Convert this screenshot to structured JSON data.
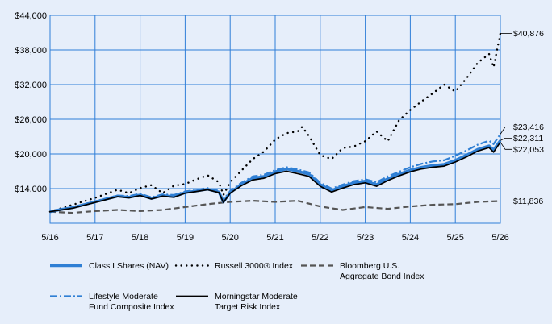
{
  "colors": {
    "background": "#e6eefa",
    "grid": "#2f7ed8",
    "class_i": "#2f7fd4",
    "russell": "#000000",
    "bloomberg": "#555555",
    "lifestyle": "#2f7fd4",
    "morningstar": "#000000"
  },
  "chart_data": {
    "type": "line",
    "title": "",
    "xlabel": "",
    "ylabel": "",
    "x_ticks": [
      "5/16",
      "5/17",
      "5/18",
      "5/19",
      "5/20",
      "5/21",
      "5/22",
      "5/23",
      "5/24",
      "5/25",
      "5/26"
    ],
    "y_ticks": [
      "$14,000",
      "$20,000",
      "$26,000",
      "$32,000",
      "$38,000",
      "$44,000"
    ],
    "ylim": [
      8000,
      44000
    ],
    "grid": true,
    "legend_position": "bottom",
    "series": [
      {
        "name": "Class I Shares (NAV)",
        "style": "solid-thick",
        "end_label": "$22,311",
        "points": [
          [
            0,
            10000
          ],
          [
            0.25,
            10400
          ],
          [
            0.5,
            10700
          ],
          [
            1.0,
            11700
          ],
          [
            1.5,
            12700
          ],
          [
            1.75,
            12500
          ],
          [
            2.0,
            12900
          ],
          [
            2.25,
            12300
          ],
          [
            2.5,
            12800
          ],
          [
            2.75,
            12600
          ],
          [
            3.0,
            13300
          ],
          [
            3.25,
            13600
          ],
          [
            3.5,
            13900
          ],
          [
            3.75,
            13400
          ],
          [
            3.85,
            11700
          ],
          [
            4.0,
            13300
          ],
          [
            4.25,
            14700
          ],
          [
            4.5,
            15800
          ],
          [
            4.75,
            16100
          ],
          [
            5.0,
            16900
          ],
          [
            5.25,
            17400
          ],
          [
            5.5,
            17000
          ],
          [
            5.75,
            16500
          ],
          [
            6.0,
            14700
          ],
          [
            6.25,
            13700
          ],
          [
            6.5,
            14400
          ],
          [
            6.75,
            15000
          ],
          [
            7.0,
            15300
          ],
          [
            7.25,
            14700
          ],
          [
            7.5,
            15700
          ],
          [
            7.75,
            16500
          ],
          [
            8.0,
            17200
          ],
          [
            8.25,
            17700
          ],
          [
            8.5,
            18000
          ],
          [
            8.75,
            18200
          ],
          [
            9.0,
            18900
          ],
          [
            9.25,
            19800
          ],
          [
            9.5,
            20800
          ],
          [
            9.75,
            21400
          ],
          [
            9.85,
            20700
          ],
          [
            10.0,
            22311
          ]
        ]
      },
      {
        "name": "Russell 3000® Index",
        "style": "dotted",
        "end_label": "$40,876",
        "points": [
          [
            0,
            10000
          ],
          [
            0.5,
            11200
          ],
          [
            1.0,
            12400
          ],
          [
            1.5,
            13800
          ],
          [
            1.75,
            13200
          ],
          [
            2.0,
            14100
          ],
          [
            2.25,
            14600
          ],
          [
            2.5,
            13200
          ],
          [
            2.75,
            14500
          ],
          [
            3.0,
            14800
          ],
          [
            3.25,
            15600
          ],
          [
            3.5,
            16300
          ],
          [
            3.75,
            15100
          ],
          [
            3.85,
            12900
          ],
          [
            4.0,
            15100
          ],
          [
            4.25,
            17100
          ],
          [
            4.5,
            19100
          ],
          [
            4.75,
            20400
          ],
          [
            5.0,
            22500
          ],
          [
            5.25,
            23600
          ],
          [
            5.5,
            23900
          ],
          [
            5.6,
            24700
          ],
          [
            5.75,
            23100
          ],
          [
            6.0,
            19800
          ],
          [
            6.25,
            19100
          ],
          [
            6.5,
            21000
          ],
          [
            6.75,
            21300
          ],
          [
            7.0,
            22200
          ],
          [
            7.25,
            23900
          ],
          [
            7.5,
            22200
          ],
          [
            7.75,
            25800
          ],
          [
            8.0,
            27600
          ],
          [
            8.25,
            29100
          ],
          [
            8.5,
            30500
          ],
          [
            8.75,
            32000
          ],
          [
            9.0,
            30800
          ],
          [
            9.25,
            33100
          ],
          [
            9.5,
            35800
          ],
          [
            9.75,
            37300
          ],
          [
            9.85,
            35000
          ],
          [
            10.0,
            40876
          ]
        ]
      },
      {
        "name": "Bloomberg U.S. Aggregate Bond Index",
        "label_lines": [
          "Bloomberg U.S.",
          "Aggregate Bond Index"
        ],
        "style": "dashed",
        "end_label": "$11,836",
        "points": [
          [
            0,
            10000
          ],
          [
            0.5,
            9800
          ],
          [
            1.0,
            10100
          ],
          [
            1.5,
            10300
          ],
          [
            2.0,
            10100
          ],
          [
            2.5,
            10300
          ],
          [
            3.0,
            10800
          ],
          [
            3.5,
            11300
          ],
          [
            4.0,
            11700
          ],
          [
            4.5,
            11900
          ],
          [
            5.0,
            11700
          ],
          [
            5.5,
            11900
          ],
          [
            6.0,
            10900
          ],
          [
            6.5,
            10300
          ],
          [
            7.0,
            10800
          ],
          [
            7.5,
            10500
          ],
          [
            8.0,
            10900
          ],
          [
            8.5,
            11200
          ],
          [
            9.0,
            11300
          ],
          [
            9.5,
            11700
          ],
          [
            10.0,
            11836
          ]
        ]
      },
      {
        "name": "Lifestyle Moderate Fund Composite Index",
        "label_lines": [
          "Lifestyle Moderate",
          "Fund Composite Index"
        ],
        "style": "dashdot",
        "end_label": "$23,416",
        "points": [
          [
            0,
            10000
          ],
          [
            0.25,
            10400
          ],
          [
            0.5,
            10800
          ],
          [
            1.0,
            11800
          ],
          [
            1.5,
            12800
          ],
          [
            1.75,
            12700
          ],
          [
            2.0,
            13100
          ],
          [
            2.25,
            12500
          ],
          [
            2.5,
            13000
          ],
          [
            2.75,
            12900
          ],
          [
            3.0,
            13500
          ],
          [
            3.25,
            13800
          ],
          [
            3.5,
            14100
          ],
          [
            3.75,
            13600
          ],
          [
            3.85,
            12000
          ],
          [
            4.0,
            13600
          ],
          [
            4.25,
            15000
          ],
          [
            4.5,
            16100
          ],
          [
            4.75,
            16400
          ],
          [
            5.0,
            17200
          ],
          [
            5.25,
            17700
          ],
          [
            5.5,
            17300
          ],
          [
            5.75,
            16800
          ],
          [
            6.0,
            15000
          ],
          [
            6.25,
            14000
          ],
          [
            6.5,
            14700
          ],
          [
            6.75,
            15300
          ],
          [
            7.0,
            15600
          ],
          [
            7.25,
            15100
          ],
          [
            7.5,
            16100
          ],
          [
            7.75,
            16900
          ],
          [
            8.0,
            17700
          ],
          [
            8.25,
            18300
          ],
          [
            8.5,
            18700
          ],
          [
            8.75,
            18900
          ],
          [
            9.0,
            19700
          ],
          [
            9.25,
            20600
          ],
          [
            9.5,
            21600
          ],
          [
            9.75,
            22300
          ],
          [
            9.85,
            21700
          ],
          [
            10.0,
            23416
          ]
        ]
      },
      {
        "name": "Morningstar Moderate Target Risk Index",
        "label_lines": [
          "Morningstar Moderate",
          "Target Risk Index"
        ],
        "style": "solid",
        "end_label": "$22,053",
        "points": [
          [
            0,
            10000
          ],
          [
            0.25,
            10300
          ],
          [
            0.5,
            10600
          ],
          [
            1.0,
            11600
          ],
          [
            1.5,
            12600
          ],
          [
            1.75,
            12400
          ],
          [
            2.0,
            12800
          ],
          [
            2.25,
            12200
          ],
          [
            2.5,
            12700
          ],
          [
            2.75,
            12500
          ],
          [
            3.0,
            13200
          ],
          [
            3.25,
            13500
          ],
          [
            3.5,
            13800
          ],
          [
            3.75,
            13300
          ],
          [
            3.85,
            11600
          ],
          [
            4.0,
            13200
          ],
          [
            4.25,
            14500
          ],
          [
            4.5,
            15500
          ],
          [
            4.75,
            15800
          ],
          [
            5.0,
            16600
          ],
          [
            5.25,
            17000
          ],
          [
            5.5,
            16600
          ],
          [
            5.75,
            16100
          ],
          [
            6.0,
            14400
          ],
          [
            6.25,
            13400
          ],
          [
            6.5,
            14100
          ],
          [
            6.75,
            14700
          ],
          [
            7.0,
            15000
          ],
          [
            7.25,
            14400
          ],
          [
            7.5,
            15400
          ],
          [
            7.75,
            16200
          ],
          [
            8.0,
            16900
          ],
          [
            8.25,
            17400
          ],
          [
            8.5,
            17700
          ],
          [
            8.75,
            17900
          ],
          [
            9.0,
            18600
          ],
          [
            9.25,
            19500
          ],
          [
            9.5,
            20500
          ],
          [
            9.75,
            21100
          ],
          [
            9.85,
            20300
          ],
          [
            10.0,
            22053
          ]
        ]
      }
    ]
  }
}
